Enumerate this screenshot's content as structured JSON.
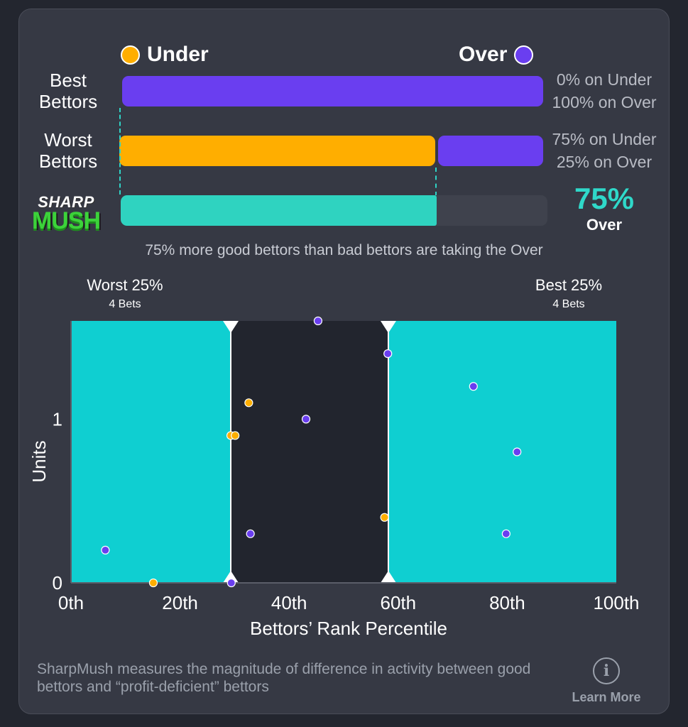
{
  "legend": {
    "under_label": "Under",
    "over_label": "Over",
    "under_color": "#ffae00",
    "over_color": "#6a3ef0"
  },
  "rows": [
    {
      "label": "Best Bettors",
      "under_pct": 0,
      "over_pct": 100,
      "note_under": "0% on Under",
      "note_over": "100% on Over"
    },
    {
      "label": "Worst Bettors",
      "under_pct": 75,
      "over_pct": 25,
      "note_under": "75% on Under",
      "note_over": "25% on Over"
    }
  ],
  "sharpmush": {
    "logo_line1": "SHARP",
    "logo_line2": "MUSH",
    "value_pct": 75,
    "value_text": "75%",
    "side": "Over",
    "bar_color": "#2fd3c0"
  },
  "summary_text": "75% more good bettors than bad bettors are taking the Over",
  "zones": {
    "worst_label": "Worst 25%",
    "worst_count": "4 Bets",
    "best_label": "Best 25%",
    "best_count": "4 Bets"
  },
  "footer": {
    "text": "SharpMush measures the magnitude of difference in activity between good bettors and “profit-deficient” bettors",
    "learn_icon": "info-icon",
    "learn_label": "Learn More"
  },
  "chart_data": {
    "type": "scatter",
    "xlabel": "Bettors’ Rank Percentile",
    "ylabel": "Units",
    "xlim": [
      0,
      100
    ],
    "ylim": [
      0,
      1.6
    ],
    "x_ticks": [
      {
        "value": 0,
        "label": "0th"
      },
      {
        "value": 20,
        "label": "20th"
      },
      {
        "value": 40,
        "label": "40th"
      },
      {
        "value": 60,
        "label": "60th"
      },
      {
        "value": 80,
        "label": "80th"
      },
      {
        "value": 100,
        "label": "100th"
      }
    ],
    "y_ticks": [
      {
        "value": 0,
        "label": "0"
      },
      {
        "value": 1,
        "label": "1"
      }
    ],
    "worst_zone": [
      0,
      29.3
    ],
    "best_zone": [
      58.2,
      100
    ],
    "zone_color": "#0fcfd1",
    "series": [
      {
        "name": "Under",
        "color": "#ffae00",
        "points": [
          {
            "x": 15.1,
            "y": 0.0
          },
          {
            "x": 29.3,
            "y": 0.9
          },
          {
            "x": 30.1,
            "y": 0.9
          },
          {
            "x": 32.6,
            "y": 1.1
          },
          {
            "x": 57.5,
            "y": 0.4
          }
        ]
      },
      {
        "name": "Over",
        "color": "#6a3ef0",
        "points": [
          {
            "x": 6.3,
            "y": 0.2
          },
          {
            "x": 29.4,
            "y": 0.0
          },
          {
            "x": 32.9,
            "y": 0.3
          },
          {
            "x": 43.1,
            "y": 1.0
          },
          {
            "x": 45.3,
            "y": 1.6
          },
          {
            "x": 58.1,
            "y": 1.4
          },
          {
            "x": 73.8,
            "y": 1.2
          },
          {
            "x": 79.8,
            "y": 0.3
          },
          {
            "x": 81.8,
            "y": 0.8
          }
        ]
      }
    ]
  }
}
